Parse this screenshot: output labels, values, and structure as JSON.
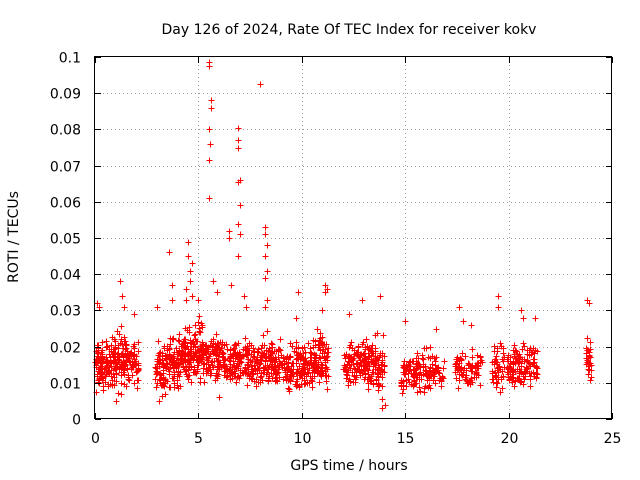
{
  "chart_data": {
    "type": "scatter",
    "title": "Day 126 of 2024, Rate Of TEC Index for receiver kokv",
    "xlabel": "GPS time / hours",
    "ylabel": "ROTI / TECUs",
    "xlim": [
      0,
      25
    ],
    "ylim": [
      0,
      0.1
    ],
    "xticks": [
      0,
      5,
      10,
      15,
      20,
      25
    ],
    "xtick_labels": [
      "0",
      "5",
      "10",
      "15",
      "20",
      "25"
    ],
    "yticks": [
      0,
      0.01,
      0.02,
      0.03,
      0.04,
      0.05,
      0.06,
      0.07,
      0.08,
      0.09,
      0.1
    ],
    "ytick_labels": [
      "0",
      "0.01",
      "0.02",
      "0.03",
      "0.04",
      "0.05",
      "0.06",
      "0.07",
      "0.08",
      "0.09",
      "0.1"
    ],
    "grid": true,
    "marker": "plus",
    "color": "#ff0000",
    "clusters": [
      {
        "x_range": [
          0.0,
          0.5
        ],
        "typical_range": [
          0.006,
          0.022
        ],
        "count": 70
      },
      {
        "x_range": [
          0.5,
          1.0
        ],
        "typical_range": [
          0.007,
          0.024
        ],
        "count": 60
      },
      {
        "x_range": [
          1.0,
          1.5
        ],
        "typical_range": [
          0.006,
          0.026
        ],
        "count": 70
      },
      {
        "x_range": [
          1.5,
          2.1
        ],
        "typical_range": [
          0.007,
          0.023
        ],
        "count": 60
      },
      {
        "x_range": [
          2.9,
          3.5
        ],
        "typical_range": [
          0.006,
          0.022
        ],
        "count": 70
      },
      {
        "x_range": [
          3.5,
          4.2
        ],
        "typical_range": [
          0.007,
          0.024
        ],
        "count": 80
      },
      {
        "x_range": [
          4.2,
          4.8
        ],
        "typical_range": [
          0.008,
          0.026
        ],
        "count": 80
      },
      {
        "x_range": [
          4.8,
          5.3
        ],
        "typical_range": [
          0.008,
          0.028
        ],
        "count": 70
      },
      {
        "x_range": [
          5.3,
          6.0
        ],
        "typical_range": [
          0.008,
          0.024
        ],
        "count": 80
      },
      {
        "x_range": [
          6.0,
          6.6
        ],
        "typical_range": [
          0.007,
          0.022
        ],
        "count": 60
      },
      {
        "x_range": [
          6.6,
          7.3
        ],
        "typical_range": [
          0.007,
          0.024
        ],
        "count": 70
      },
      {
        "x_range": [
          7.3,
          8.0
        ],
        "typical_range": [
          0.007,
          0.022
        ],
        "count": 70
      },
      {
        "x_range": [
          8.0,
          8.6
        ],
        "typical_range": [
          0.007,
          0.024
        ],
        "count": 60
      },
      {
        "x_range": [
          8.6,
          9.3
        ],
        "typical_range": [
          0.007,
          0.022
        ],
        "count": 60
      },
      {
        "x_range": [
          9.3,
          10.0
        ],
        "typical_range": [
          0.006,
          0.022
        ],
        "count": 70
      },
      {
        "x_range": [
          10.0,
          10.6
        ],
        "typical_range": [
          0.006,
          0.024
        ],
        "count": 70
      },
      {
        "x_range": [
          10.6,
          11.3
        ],
        "typical_range": [
          0.006,
          0.026
        ],
        "count": 80
      },
      {
        "x_range": [
          12.0,
          12.7
        ],
        "typical_range": [
          0.007,
          0.022
        ],
        "count": 60
      },
      {
        "x_range": [
          12.7,
          13.3
        ],
        "typical_range": [
          0.007,
          0.024
        ],
        "count": 70
      },
      {
        "x_range": [
          13.3,
          14.0
        ],
        "typical_range": [
          0.005,
          0.024
        ],
        "count": 80
      },
      {
        "x_range": [
          14.8,
          15.5
        ],
        "typical_range": [
          0.006,
          0.018
        ],
        "count": 60
      },
      {
        "x_range": [
          15.5,
          16.2
        ],
        "typical_range": [
          0.006,
          0.02
        ],
        "count": 60
      },
      {
        "x_range": [
          16.2,
          16.9
        ],
        "typical_range": [
          0.007,
          0.018
        ],
        "count": 40
      },
      {
        "x_range": [
          17.4,
          18.0
        ],
        "typical_range": [
          0.007,
          0.02
        ],
        "count": 40
      },
      {
        "x_range": [
          18.0,
          18.7
        ],
        "typical_range": [
          0.007,
          0.02
        ],
        "count": 40
      },
      {
        "x_range": [
          19.2,
          19.8
        ],
        "typical_range": [
          0.007,
          0.022
        ],
        "count": 50
      },
      {
        "x_range": [
          19.9,
          20.6
        ],
        "typical_range": [
          0.007,
          0.022
        ],
        "count": 70
      },
      {
        "x_range": [
          20.6,
          21.4
        ],
        "typical_range": [
          0.008,
          0.022
        ],
        "count": 60
      },
      {
        "x_range": [
          23.7,
          24.0
        ],
        "typical_range": [
          0.007,
          0.024
        ],
        "count": 30
      }
    ],
    "outliers": [
      {
        "x": 0.1,
        "y": 0.032
      },
      {
        "x": 0.2,
        "y": 0.031
      },
      {
        "x": 1.2,
        "y": 0.038
      },
      {
        "x": 1.3,
        "y": 0.034
      },
      {
        "x": 1.4,
        "y": 0.031
      },
      {
        "x": 1.9,
        "y": 0.029
      },
      {
        "x": 3.0,
        "y": 0.031
      },
      {
        "x": 3.6,
        "y": 0.046
      },
      {
        "x": 3.7,
        "y": 0.037
      },
      {
        "x": 3.7,
        "y": 0.033
      },
      {
        "x": 4.4,
        "y": 0.036
      },
      {
        "x": 4.4,
        "y": 0.033
      },
      {
        "x": 4.5,
        "y": 0.049
      },
      {
        "x": 4.5,
        "y": 0.045
      },
      {
        "x": 4.6,
        "y": 0.041
      },
      {
        "x": 4.6,
        "y": 0.038
      },
      {
        "x": 4.7,
        "y": 0.043
      },
      {
        "x": 4.7,
        "y": 0.034
      },
      {
        "x": 5.0,
        "y": 0.033
      },
      {
        "x": 5.5,
        "y": 0.0975
      },
      {
        "x": 5.5,
        "y": 0.0985
      },
      {
        "x": 5.6,
        "y": 0.088
      },
      {
        "x": 5.6,
        "y": 0.086
      },
      {
        "x": 5.5,
        "y": 0.08
      },
      {
        "x": 5.55,
        "y": 0.076
      },
      {
        "x": 5.5,
        "y": 0.0715
      },
      {
        "x": 5.5,
        "y": 0.061
      },
      {
        "x": 5.7,
        "y": 0.038
      },
      {
        "x": 5.9,
        "y": 0.035
      },
      {
        "x": 6.5,
        "y": 0.05
      },
      {
        "x": 6.5,
        "y": 0.052
      },
      {
        "x": 6.6,
        "y": 0.037
      },
      {
        "x": 6.9,
        "y": 0.0805
      },
      {
        "x": 6.9,
        "y": 0.077
      },
      {
        "x": 6.9,
        "y": 0.075
      },
      {
        "x": 7.0,
        "y": 0.066
      },
      {
        "x": 6.9,
        "y": 0.0655
      },
      {
        "x": 7.0,
        "y": 0.059
      },
      {
        "x": 6.9,
        "y": 0.054
      },
      {
        "x": 7.0,
        "y": 0.051
      },
      {
        "x": 6.9,
        "y": 0.045
      },
      {
        "x": 7.2,
        "y": 0.034
      },
      {
        "x": 7.3,
        "y": 0.031
      },
      {
        "x": 8.0,
        "y": 0.0925
      },
      {
        "x": 8.2,
        "y": 0.053
      },
      {
        "x": 8.2,
        "y": 0.051
      },
      {
        "x": 8.3,
        "y": 0.048
      },
      {
        "x": 8.2,
        "y": 0.045
      },
      {
        "x": 8.3,
        "y": 0.041
      },
      {
        "x": 8.2,
        "y": 0.039
      },
      {
        "x": 8.3,
        "y": 0.033
      },
      {
        "x": 8.2,
        "y": 0.031
      },
      {
        "x": 9.7,
        "y": 0.028
      },
      {
        "x": 9.8,
        "y": 0.035
      },
      {
        "x": 11.1,
        "y": 0.037
      },
      {
        "x": 11.2,
        "y": 0.036
      },
      {
        "x": 11.1,
        "y": 0.035
      },
      {
        "x": 11.0,
        "y": 0.03
      },
      {
        "x": 12.3,
        "y": 0.029
      },
      {
        "x": 12.9,
        "y": 0.033
      },
      {
        "x": 13.8,
        "y": 0.034
      },
      {
        "x": 15.0,
        "y": 0.027
      },
      {
        "x": 16.5,
        "y": 0.025
      },
      {
        "x": 17.6,
        "y": 0.031
      },
      {
        "x": 17.8,
        "y": 0.027
      },
      {
        "x": 18.2,
        "y": 0.026
      },
      {
        "x": 19.5,
        "y": 0.034
      },
      {
        "x": 19.5,
        "y": 0.031
      },
      {
        "x": 20.6,
        "y": 0.03
      },
      {
        "x": 20.7,
        "y": 0.028
      },
      {
        "x": 21.3,
        "y": 0.028
      },
      {
        "x": 23.8,
        "y": 0.033
      },
      {
        "x": 23.9,
        "y": 0.032
      },
      {
        "x": 13.9,
        "y": 0.003
      },
      {
        "x": 14.0,
        "y": 0.004
      },
      {
        "x": 6.0,
        "y": 0.006
      },
      {
        "x": 3.1,
        "y": 0.005
      },
      {
        "x": 1.0,
        "y": 0.005
      }
    ]
  }
}
